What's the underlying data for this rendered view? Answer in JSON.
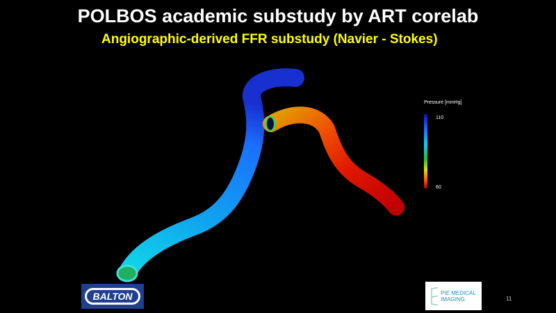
{
  "slide": {
    "title": "POLBOS academic substudy by ART corelab",
    "subtitle": "Angiographic-derived FFR substudy (Navier - Stokes)",
    "page_number": "11"
  },
  "legend": {
    "title": "Pressure [mmHg]",
    "max_label": "110",
    "min_label": "60",
    "colors": [
      "#1010a0",
      "#1e50ff",
      "#10c8ff",
      "#20c040",
      "#e0e000",
      "#ff6000",
      "#a00000"
    ]
  },
  "logos": {
    "balton": "BALTON",
    "pie_medical": "PIE MEDICAL IMAGING"
  }
}
